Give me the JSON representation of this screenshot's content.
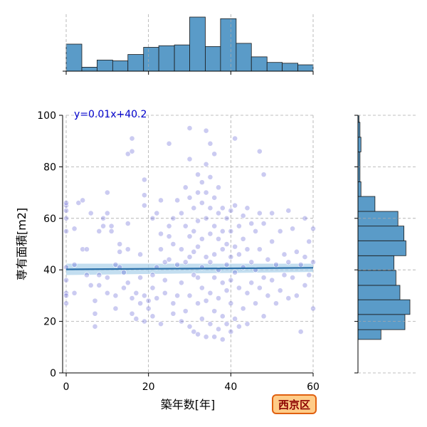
{
  "chart_data": {
    "type": "scatter",
    "xlabel": "築年数[年]",
    "ylabel": "専有面積[m2]",
    "xlim": [
      0,
      60
    ],
    "ylim": [
      0,
      100
    ],
    "xticks": [
      0,
      20,
      40,
      60
    ],
    "yticks": [
      0,
      20,
      40,
      60,
      80,
      100
    ],
    "grid": true,
    "annotation": "y=0.01x+40.2",
    "badge": "西京区",
    "regression": {
      "slope": 0.01,
      "intercept": 40.2
    },
    "points": [
      [
        0,
        31
      ],
      [
        0,
        30
      ],
      [
        0,
        27
      ],
      [
        0,
        36
      ],
      [
        0,
        41
      ],
      [
        0,
        55
      ],
      [
        0,
        60
      ],
      [
        0,
        63
      ],
      [
        0,
        65
      ],
      [
        0,
        66
      ],
      [
        2,
        31
      ],
      [
        2,
        42
      ],
      [
        2,
        56
      ],
      [
        3,
        66
      ],
      [
        4,
        48
      ],
      [
        4,
        67
      ],
      [
        5,
        48
      ],
      [
        5,
        38
      ],
      [
        6,
        62
      ],
      [
        6,
        34
      ],
      [
        7,
        28
      ],
      [
        7,
        23
      ],
      [
        7,
        18
      ],
      [
        8,
        34
      ],
      [
        8,
        55
      ],
      [
        8,
        38
      ],
      [
        9,
        60
      ],
      [
        9,
        57
      ],
      [
        10,
        70
      ],
      [
        10,
        62
      ],
      [
        10,
        37
      ],
      [
        10,
        31
      ],
      [
        11,
        57
      ],
      [
        11,
        55
      ],
      [
        12,
        42
      ],
      [
        12,
        30
      ],
      [
        12,
        25
      ],
      [
        13,
        50
      ],
      [
        13,
        47
      ],
      [
        13,
        41
      ],
      [
        14,
        39
      ],
      [
        14,
        33
      ],
      [
        15,
        85
      ],
      [
        15,
        58
      ],
      [
        15,
        48
      ],
      [
        15,
        35
      ],
      [
        16,
        91
      ],
      [
        16,
        86
      ],
      [
        16,
        29
      ],
      [
        16,
        23
      ],
      [
        17,
        31
      ],
      [
        17,
        21
      ],
      [
        18,
        46
      ],
      [
        18,
        37
      ],
      [
        18,
        27
      ],
      [
        19,
        75
      ],
      [
        19,
        69
      ],
      [
        19,
        65
      ],
      [
        19,
        30
      ],
      [
        19,
        20
      ],
      [
        20,
        25
      ],
      [
        20,
        28
      ],
      [
        21,
        60
      ],
      [
        21,
        38
      ],
      [
        21,
        33
      ],
      [
        21,
        22
      ],
      [
        22,
        62
      ],
      [
        22,
        41
      ],
      [
        22,
        29
      ],
      [
        23,
        67
      ],
      [
        23,
        54
      ],
      [
        23,
        48
      ],
      [
        23,
        19
      ],
      [
        24,
        43
      ],
      [
        24,
        36
      ],
      [
        24,
        31
      ],
      [
        25,
        89
      ],
      [
        25,
        57
      ],
      [
        25,
        53
      ],
      [
        25,
        44
      ],
      [
        26,
        60
      ],
      [
        26,
        50
      ],
      [
        26,
        27
      ],
      [
        26,
        23
      ],
      [
        27,
        67
      ],
      [
        27,
        42
      ],
      [
        27,
        30
      ],
      [
        28,
        62
      ],
      [
        28,
        48
      ],
      [
        28,
        35
      ],
      [
        28,
        20
      ],
      [
        29,
        72
      ],
      [
        29,
        57
      ],
      [
        29,
        43
      ],
      [
        29,
        24
      ],
      [
        30,
        95
      ],
      [
        30,
        83
      ],
      [
        30,
        68
      ],
      [
        30,
        53
      ],
      [
        30,
        45
      ],
      [
        30,
        30
      ],
      [
        30,
        18
      ],
      [
        31,
        64
      ],
      [
        31,
        55
      ],
      [
        31,
        47
      ],
      [
        31,
        38
      ],
      [
        31,
        16
      ],
      [
        32,
        77
      ],
      [
        32,
        70
      ],
      [
        32,
        59
      ],
      [
        32,
        49
      ],
      [
        32,
        37
      ],
      [
        32,
        27
      ],
      [
        32,
        15
      ],
      [
        33,
        74
      ],
      [
        33,
        66
      ],
      [
        33,
        52
      ],
      [
        33,
        41
      ],
      [
        33,
        33
      ],
      [
        33,
        21
      ],
      [
        34,
        94
      ],
      [
        34,
        81
      ],
      [
        34,
        70
      ],
      [
        34,
        60
      ],
      [
        34,
        45
      ],
      [
        34,
        28
      ],
      [
        34,
        14
      ],
      [
        35,
        89
      ],
      [
        35,
        76
      ],
      [
        35,
        64
      ],
      [
        35,
        54
      ],
      [
        35,
        43
      ],
      [
        35,
        31
      ],
      [
        35,
        19
      ],
      [
        36,
        85
      ],
      [
        36,
        68
      ],
      [
        36,
        57
      ],
      [
        36,
        46
      ],
      [
        36,
        37
      ],
      [
        36,
        24
      ],
      [
        36,
        14
      ],
      [
        37,
        72
      ],
      [
        37,
        62
      ],
      [
        37,
        52
      ],
      [
        37,
        40
      ],
      [
        37,
        29
      ],
      [
        37,
        17
      ],
      [
        38,
        64
      ],
      [
        38,
        55
      ],
      [
        38,
        48
      ],
      [
        38,
        35
      ],
      [
        38,
        22
      ],
      [
        38,
        13
      ],
      [
        39,
        60
      ],
      [
        39,
        50
      ],
      [
        39,
        42
      ],
      [
        39,
        32
      ],
      [
        39,
        19
      ],
      [
        40,
        63
      ],
      [
        40,
        55
      ],
      [
        40,
        45
      ],
      [
        40,
        36
      ],
      [
        40,
        27
      ],
      [
        40,
        16
      ],
      [
        41,
        91
      ],
      [
        41,
        65
      ],
      [
        41,
        49
      ],
      [
        41,
        39
      ],
      [
        41,
        21
      ],
      [
        42,
        57
      ],
      [
        42,
        46
      ],
      [
        42,
        33
      ],
      [
        42,
        18
      ],
      [
        43,
        61
      ],
      [
        43,
        52
      ],
      [
        43,
        41
      ],
      [
        43,
        25
      ],
      [
        44,
        64
      ],
      [
        44,
        48
      ],
      [
        44,
        31
      ],
      [
        44,
        19
      ],
      [
        45,
        58
      ],
      [
        45,
        43
      ],
      [
        45,
        35
      ],
      [
        46,
        55
      ],
      [
        46,
        40
      ],
      [
        46,
        27
      ],
      [
        47,
        86
      ],
      [
        47,
        62
      ],
      [
        47,
        48
      ],
      [
        47,
        33
      ],
      [
        48,
        77
      ],
      [
        48,
        58
      ],
      [
        48,
        37
      ],
      [
        48,
        22
      ],
      [
        49,
        44
      ],
      [
        49,
        30
      ],
      [
        50,
        62
      ],
      [
        50,
        51
      ],
      [
        50,
        36
      ],
      [
        51,
        42
      ],
      [
        51,
        27
      ],
      [
        52,
        55
      ],
      [
        52,
        32
      ],
      [
        53,
        46
      ],
      [
        53,
        38
      ],
      [
        54,
        63
      ],
      [
        54,
        43
      ],
      [
        54,
        29
      ],
      [
        55,
        56
      ],
      [
        55,
        37
      ],
      [
        56,
        47
      ],
      [
        56,
        30
      ],
      [
        57,
        42
      ],
      [
        57,
        16
      ],
      [
        58,
        60
      ],
      [
        58,
        45
      ],
      [
        58,
        34
      ],
      [
        59,
        51
      ],
      [
        59,
        38
      ],
      [
        60,
        43
      ],
      [
        60,
        25
      ],
      [
        60,
        56
      ]
    ],
    "x_histogram": {
      "bin_edges": [
        0,
        3.8,
        7.5,
        11.3,
        15,
        18.8,
        22.5,
        26.3,
        30,
        33.8,
        37.5,
        41.3,
        45,
        48.8,
        52.5,
        56.3,
        60
      ],
      "counts": [
        34,
        5,
        14,
        13,
        21,
        30,
        32,
        33,
        68,
        31,
        66,
        35,
        18,
        11,
        10,
        8
      ]
    },
    "y_histogram": {
      "bin_edges": [
        13,
        16.8,
        22.7,
        28.4,
        34,
        39.8,
        45.5,
        51.3,
        57,
        62.7,
        68.5,
        74.2,
        80,
        85.8,
        91.5,
        97.3,
        100
      ],
      "counts": [
        23,
        47,
        52,
        42,
        38,
        36,
        48,
        46,
        40,
        17,
        3,
        2,
        2,
        3,
        2,
        1
      ]
    },
    "colors": {
      "histogram_fill": "#5a9bc8",
      "histogram_edge": "#1a1a1a",
      "point_fill": "#4444cc",
      "regression_line": "#2a6fa8",
      "confidence_band": "#a9d0ea",
      "grid": "#aaaaaa",
      "annotation_text": "#0000cc",
      "badge_fill": "#ffcc88",
      "badge_border": "#e06010",
      "badge_text": "#8b0000"
    }
  }
}
